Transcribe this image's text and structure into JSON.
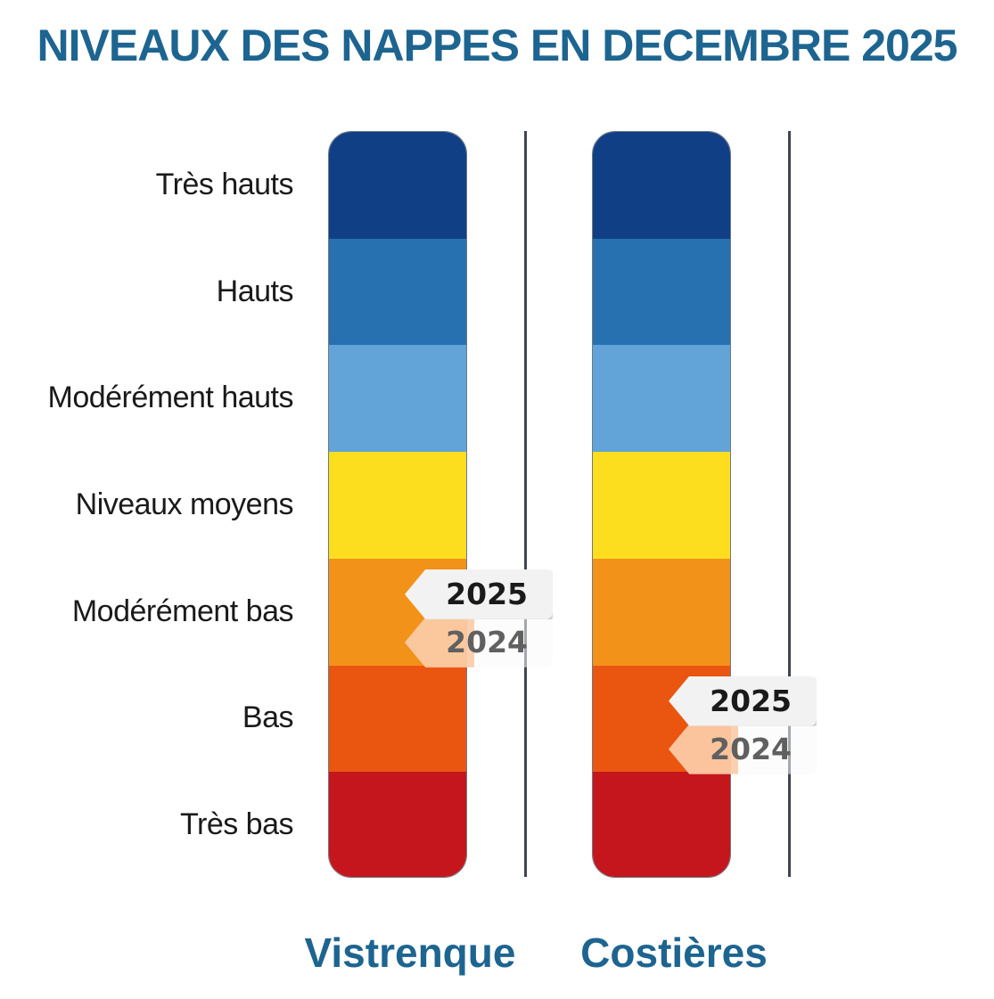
{
  "chart_data": {
    "type": "table",
    "title": "NIVEAUX DES NAPPES EN DECEMBRE 2025",
    "levels": [
      {
        "label": "Très hauts",
        "color": "#113f86"
      },
      {
        "label": "Hauts",
        "color": "#2771b1"
      },
      {
        "label": "Modérément hauts",
        "color": "#62a4d8"
      },
      {
        "label": "Niveaux moyens",
        "color": "#fcde1f"
      },
      {
        "label": "Modérément bas",
        "color": "#f29219"
      },
      {
        "label": "Bas",
        "color": "#ea5610"
      },
      {
        "label": "Très bas",
        "color": "#c4161c"
      }
    ],
    "sites": [
      {
        "name": "Vistrenque",
        "current": {
          "year": "2025",
          "level": "Modérément bas"
        },
        "previous": {
          "year": "2024",
          "level": "Modérément bas"
        }
      },
      {
        "name": "Costières",
        "current": {
          "year": "2025",
          "level": "Bas"
        },
        "previous": {
          "year": "2024",
          "level": "Bas"
        }
      }
    ],
    "colors": {
      "title": "#1d6590",
      "site_label": "#1d6590"
    }
  }
}
